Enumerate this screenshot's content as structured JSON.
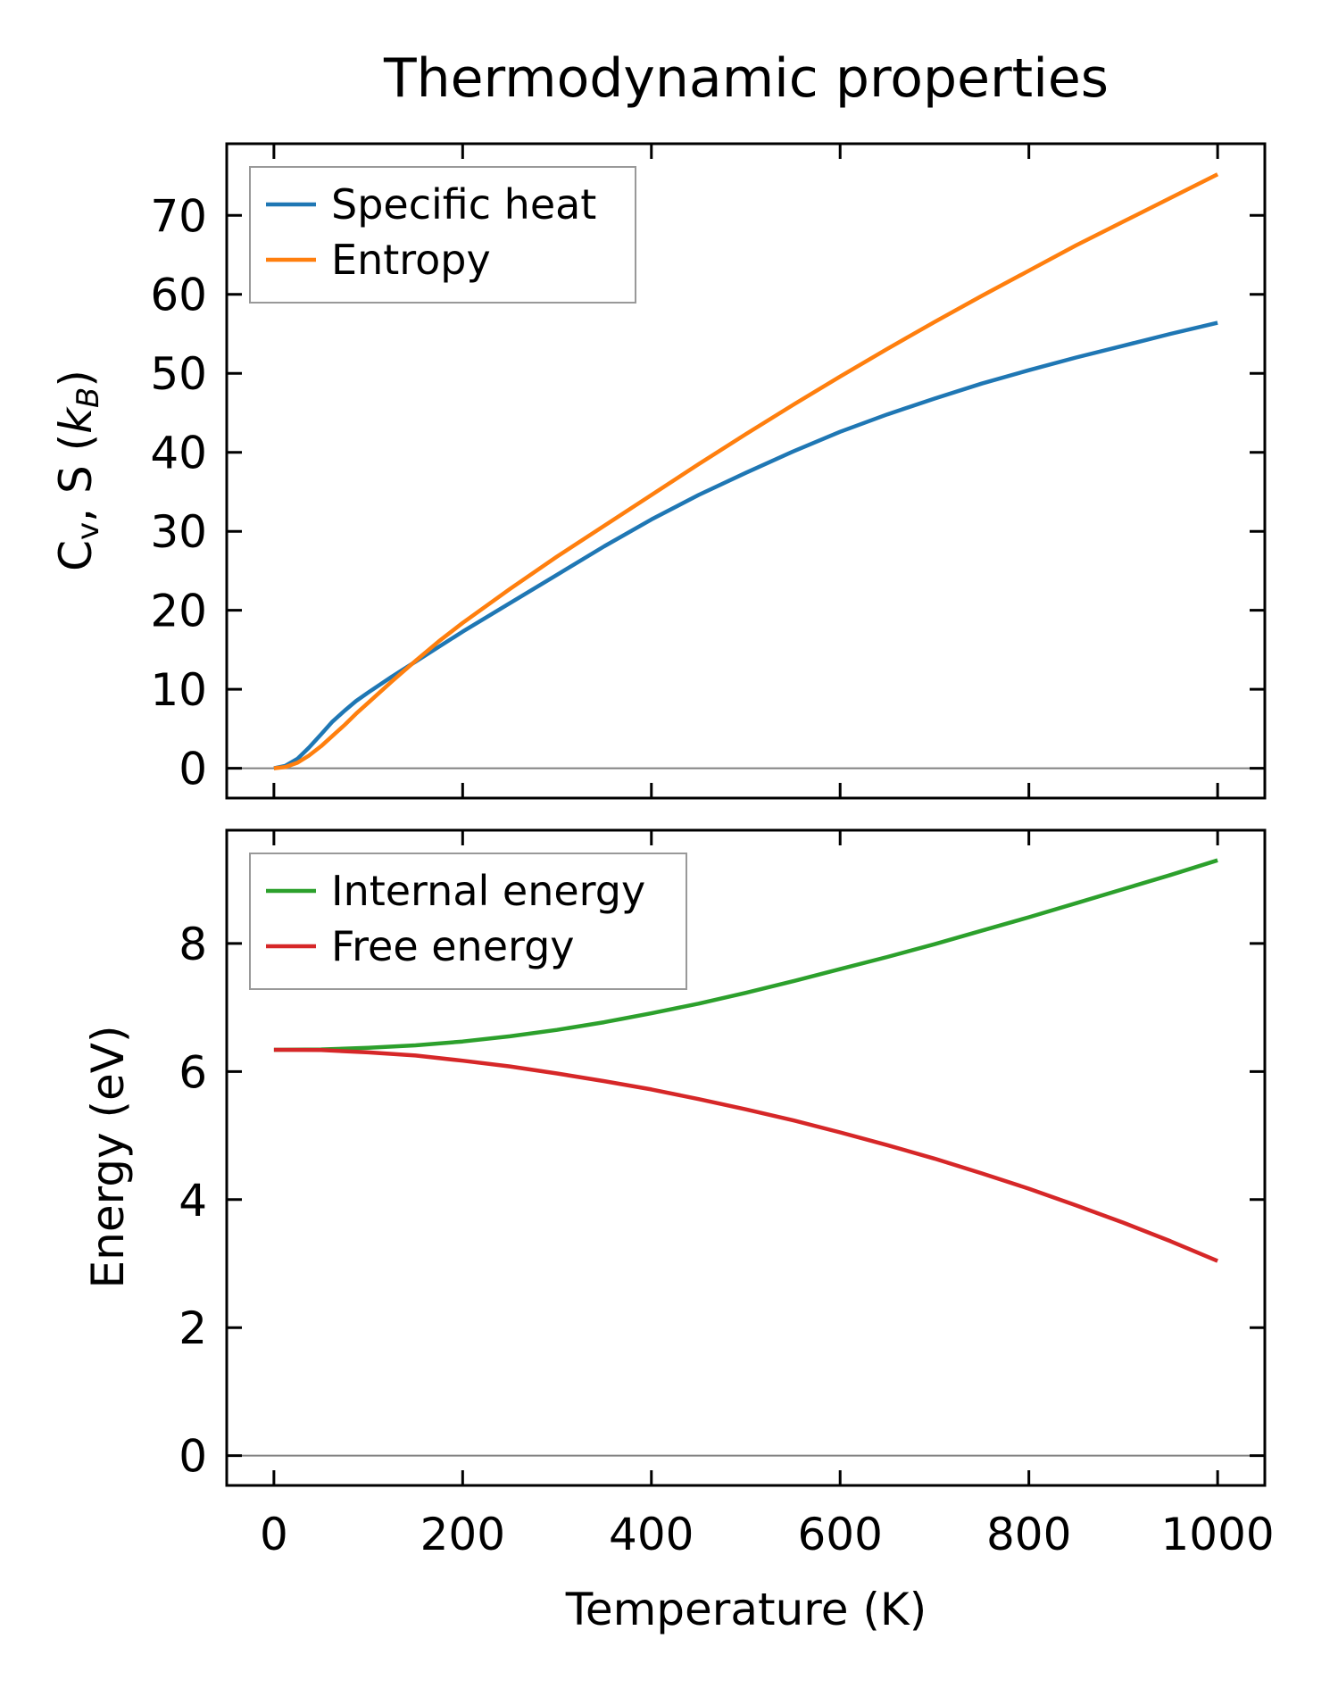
{
  "chart_data": [
    {
      "type": "line",
      "panel": "top",
      "title": "Thermodynamic properties",
      "xlabel": "",
      "ylabel": "Cv, S (kB)",
      "xlim": [
        -50,
        1050
      ],
      "ylim": [
        -3.77,
        79.07
      ],
      "x_ticks": [
        0,
        200,
        400,
        600,
        800,
        1000
      ],
      "y_ticks": [
        0,
        10,
        20,
        30,
        40,
        50,
        60,
        70
      ],
      "y_tick_labels": [
        "0",
        "10",
        "20",
        "30",
        "40",
        "50",
        "60",
        "70"
      ],
      "grid": false,
      "hline_at": 0,
      "legend_position": "upper-left",
      "series": [
        {
          "name": "Specific heat",
          "color": "#1f77b4",
          "x": [
            0,
            12,
            25,
            37,
            50,
            62,
            75,
            87,
            100,
            125,
            150,
            175,
            200,
            250,
            300,
            350,
            400,
            450,
            500,
            550,
            600,
            650,
            700,
            750,
            800,
            850,
            900,
            950,
            1000
          ],
          "y": [
            0,
            0.3,
            1.2,
            2.6,
            4.3,
            5.9,
            7.3,
            8.5,
            9.6,
            11.6,
            13.5,
            15.4,
            17.3,
            20.9,
            24.5,
            28.1,
            31.5,
            34.6,
            37.4,
            40.1,
            42.6,
            44.8,
            46.8,
            48.7,
            50.4,
            52.0,
            53.5,
            55.0,
            56.4
          ]
        },
        {
          "name": "Entropy",
          "color": "#ff7f0e",
          "x": [
            0,
            12,
            25,
            37,
            50,
            62,
            75,
            87,
            100,
            125,
            150,
            175,
            200,
            250,
            300,
            350,
            400,
            450,
            500,
            550,
            600,
            650,
            700,
            750,
            800,
            850,
            900,
            950,
            1000
          ],
          "y": [
            0,
            0.15,
            0.7,
            1.6,
            2.8,
            4.1,
            5.5,
            6.9,
            8.3,
            11.0,
            13.6,
            16.1,
            18.4,
            22.7,
            26.8,
            30.7,
            34.6,
            38.5,
            42.3,
            46.0,
            49.6,
            53.1,
            56.5,
            59.8,
            63.0,
            66.2,
            69.2,
            72.2,
            75.2
          ]
        }
      ]
    },
    {
      "type": "line",
      "panel": "bottom",
      "title": "",
      "xlabel": "Temperature (K)",
      "ylabel": "Energy (eV)",
      "xlim": [
        -50,
        1050
      ],
      "ylim": [
        -0.465,
        9.77
      ],
      "x_ticks": [
        0,
        200,
        400,
        600,
        800,
        1000
      ],
      "x_tick_labels": [
        "0",
        "200",
        "400",
        "600",
        "800",
        "1000"
      ],
      "y_ticks": [
        0,
        2,
        4,
        6,
        8
      ],
      "y_tick_labels": [
        "0",
        "2",
        "4",
        "6",
        "8"
      ],
      "grid": false,
      "hline_at": 0,
      "legend_position": "upper-left",
      "series": [
        {
          "name": "Internal energy",
          "color": "#2ca02c",
          "x": [
            0,
            50,
            100,
            150,
            200,
            250,
            300,
            350,
            400,
            450,
            500,
            550,
            600,
            650,
            700,
            750,
            800,
            850,
            900,
            950,
            1000
          ],
          "y": [
            6.34,
            6.345,
            6.37,
            6.41,
            6.47,
            6.55,
            6.65,
            6.77,
            6.91,
            7.06,
            7.23,
            7.41,
            7.6,
            7.79,
            7.99,
            8.2,
            8.41,
            8.63,
            8.85,
            9.07,
            9.3
          ]
        },
        {
          "name": "Free energy",
          "color": "#d62728",
          "x": [
            0,
            50,
            100,
            150,
            200,
            250,
            300,
            350,
            400,
            450,
            500,
            550,
            600,
            650,
            700,
            750,
            800,
            850,
            900,
            950,
            1000
          ],
          "y": [
            6.34,
            6.335,
            6.3,
            6.25,
            6.17,
            6.08,
            5.97,
            5.85,
            5.72,
            5.57,
            5.41,
            5.24,
            5.05,
            4.85,
            4.64,
            4.41,
            4.17,
            3.91,
            3.64,
            3.35,
            3.04
          ]
        }
      ]
    }
  ],
  "figure": {
    "title": "Thermodynamic properties",
    "top_ylabel_main": "C",
    "top_ylabel_sub": "v",
    "top_ylabel_rest": ", S (",
    "top_ylabel_k": "k",
    "top_ylabel_ksub": "B",
    "top_ylabel_close": ")",
    "bottom_ylabel": "Energy (eV)",
    "xlabel": "Temperature (K)"
  }
}
